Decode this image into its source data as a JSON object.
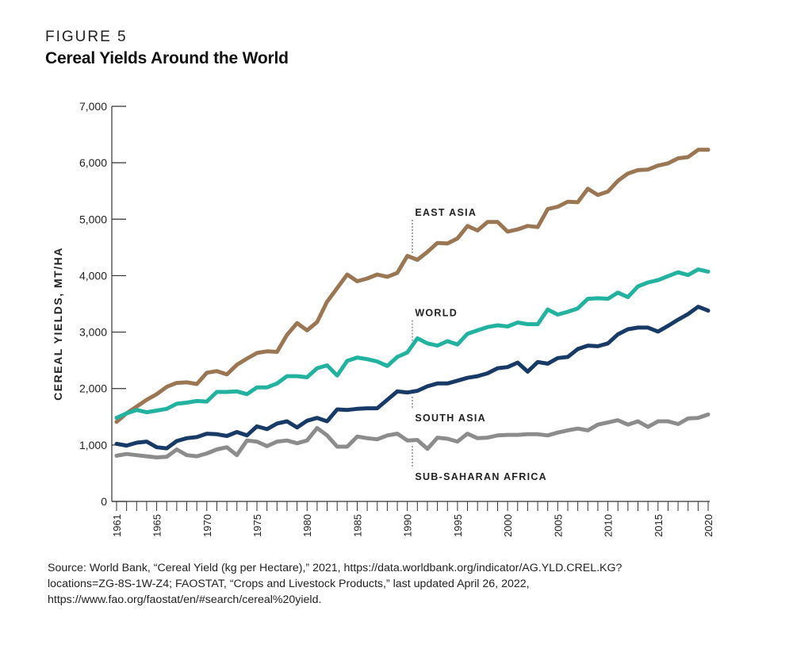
{
  "figure": {
    "label": "FIGURE 5",
    "title": "Cereal Yields Around the World"
  },
  "source": {
    "lines": [
      "Source: World Bank, “Cereal Yield (kg per Hectare),” 2021, https://data.worldbank.org/indicator/AG.YLD.CREL.KG?",
      "locations=ZG-8S-1W-Z4; FAOSTAT, “Crops and Livestock Products,” last updated April 26, 2022,",
      "https://www.fao.org/faostat/en/#search/cereal%20yield."
    ]
  },
  "chart_data": {
    "type": "line",
    "title": "Cereal Yields Around the World",
    "xlabel": "",
    "ylabel": "CEREAL YIELDS, MT/HA",
    "xlim": [
      1961,
      2020
    ],
    "ylim": [
      0,
      7000
    ],
    "yticks": [
      0,
      1000,
      2000,
      3000,
      4000,
      5000,
      6000,
      7000
    ],
    "ytick_labels": [
      "0",
      "1,000",
      "2,000",
      "3,000",
      "4,000",
      "5,000",
      "6,000",
      "7,000"
    ],
    "xtick_labels": [
      "1961",
      "1965",
      "1970",
      "1975",
      "1980",
      "1985",
      "1990",
      "1995",
      "2000",
      "2005",
      "2010",
      "2015",
      "2020"
    ],
    "xtick_values": [
      1961,
      1965,
      1970,
      1975,
      1980,
      1985,
      1990,
      1995,
      2000,
      2005,
      2010,
      2015,
      2020
    ],
    "minor_tick_step": 1,
    "grid": false,
    "annotation_year": 1990.5,
    "x": [
      1961,
      1962,
      1963,
      1964,
      1965,
      1966,
      1967,
      1968,
      1969,
      1970,
      1971,
      1972,
      1973,
      1974,
      1975,
      1976,
      1977,
      1978,
      1979,
      1980,
      1981,
      1982,
      1983,
      1984,
      1985,
      1986,
      1987,
      1988,
      1989,
      1990,
      1991,
      1992,
      1993,
      1994,
      1995,
      1996,
      1997,
      1998,
      1999,
      2000,
      2001,
      2002,
      2003,
      2004,
      2005,
      2006,
      2007,
      2008,
      2009,
      2010,
      2011,
      2012,
      2013,
      2014,
      2015,
      2016,
      2017,
      2018,
      2019,
      2020
    ],
    "series": [
      {
        "name": "EAST ASIA",
        "color": "#9b7653",
        "label_year": 1991,
        "label_value": 5130,
        "values": [
          1410,
          1560,
          1680,
          1800,
          1900,
          2030,
          2100,
          2110,
          2080,
          2280,
          2310,
          2250,
          2420,
          2530,
          2630,
          2660,
          2650,
          2950,
          3160,
          3030,
          3180,
          3540,
          3780,
          4020,
          3900,
          3950,
          4020,
          3980,
          4050,
          4350,
          4280,
          4420,
          4580,
          4570,
          4660,
          4880,
          4800,
          4950,
          4950,
          4780,
          4820,
          4880,
          4860,
          5180,
          5220,
          5310,
          5300,
          5540,
          5430,
          5490,
          5680,
          5810,
          5870,
          5880,
          5950,
          5990,
          6080,
          6100,
          6230,
          6230
        ]
      },
      {
        "name": "WORLD",
        "color": "#22b2a0",
        "label_year": 1991,
        "label_value": 3350,
        "values": [
          1480,
          1560,
          1620,
          1580,
          1610,
          1640,
          1730,
          1750,
          1780,
          1770,
          1940,
          1940,
          1950,
          1900,
          2020,
          2020,
          2090,
          2220,
          2220,
          2200,
          2360,
          2410,
          2230,
          2490,
          2550,
          2520,
          2480,
          2400,
          2560,
          2640,
          2890,
          2800,
          2760,
          2840,
          2780,
          2970,
          3030,
          3090,
          3120,
          3100,
          3170,
          3140,
          3140,
          3400,
          3310,
          3360,
          3420,
          3590,
          3600,
          3590,
          3700,
          3620,
          3810,
          3880,
          3920,
          3990,
          4060,
          4010,
          4110,
          4070
        ]
      },
      {
        "name": "SOUTH ASIA",
        "color": "#173a66",
        "label_year": 1991,
        "label_value": 1490,
        "values": [
          1020,
          990,
          1040,
          1060,
          960,
          940,
          1070,
          1120,
          1140,
          1200,
          1190,
          1160,
          1230,
          1170,
          1330,
          1280,
          1380,
          1420,
          1310,
          1430,
          1480,
          1420,
          1630,
          1620,
          1640,
          1650,
          1650,
          1800,
          1950,
          1930,
          1960,
          2040,
          2090,
          2090,
          2140,
          2190,
          2220,
          2270,
          2360,
          2380,
          2460,
          2300,
          2470,
          2440,
          2540,
          2560,
          2700,
          2760,
          2750,
          2800,
          2960,
          3050,
          3080,
          3080,
          3010,
          3110,
          3220,
          3320,
          3450,
          3380
        ]
      },
      {
        "name": "SUB-SAHARAN AFRICA",
        "color": "#8c8c8c",
        "label_year": 1991,
        "label_value": 450,
        "values": [
          810,
          840,
          820,
          800,
          780,
          790,
          920,
          820,
          800,
          850,
          920,
          960,
          820,
          1080,
          1060,
          980,
          1060,
          1080,
          1030,
          1080,
          1300,
          1170,
          970,
          970,
          1150,
          1120,
          1100,
          1170,
          1200,
          1080,
          1090,
          930,
          1130,
          1110,
          1060,
          1200,
          1120,
          1130,
          1170,
          1180,
          1180,
          1190,
          1190,
          1170,
          1220,
          1260,
          1290,
          1260,
          1360,
          1400,
          1440,
          1360,
          1420,
          1320,
          1420,
          1420,
          1370,
          1470,
          1480,
          1540
        ]
      }
    ]
  }
}
